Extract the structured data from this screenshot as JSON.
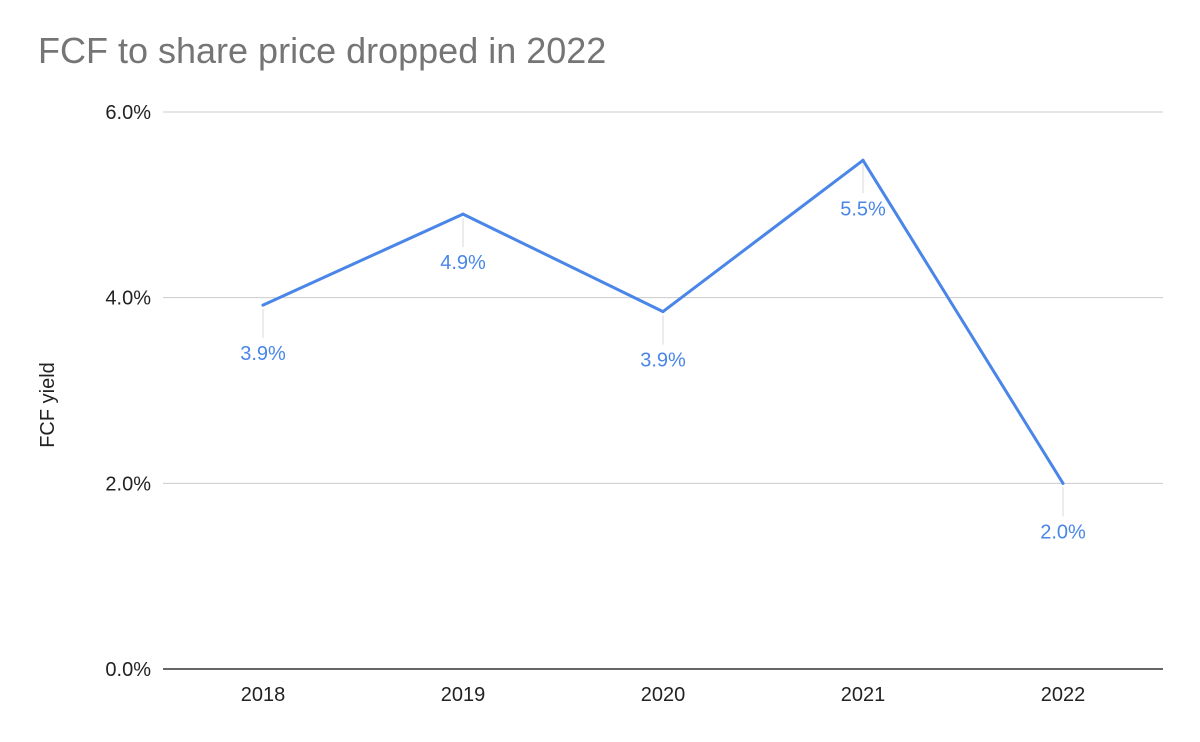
{
  "chart_data": {
    "type": "line",
    "title": "FCF to share price dropped in 2022",
    "xlabel": "",
    "ylabel": "FCF yield",
    "categories": [
      "2018",
      "2019",
      "2020",
      "2021",
      "2022"
    ],
    "series": [
      {
        "values": [
          3.92,
          4.9,
          3.85,
          5.48,
          2.0
        ],
        "data_labels": [
          "3.9%",
          "4.9%",
          "3.9%",
          "5.5%",
          "2.0%"
        ]
      }
    ],
    "ylim": [
      0,
      6
    ],
    "y_ticks": [
      0,
      2,
      4,
      6
    ],
    "y_tick_labels": [
      "0.0%",
      "2.0%",
      "4.0%",
      "6.0%"
    ],
    "grid": true,
    "legend": "none",
    "colors": {
      "line": "#4a86e8",
      "grid": "#cccccc",
      "axis": "#333333",
      "title": "#757575"
    }
  }
}
